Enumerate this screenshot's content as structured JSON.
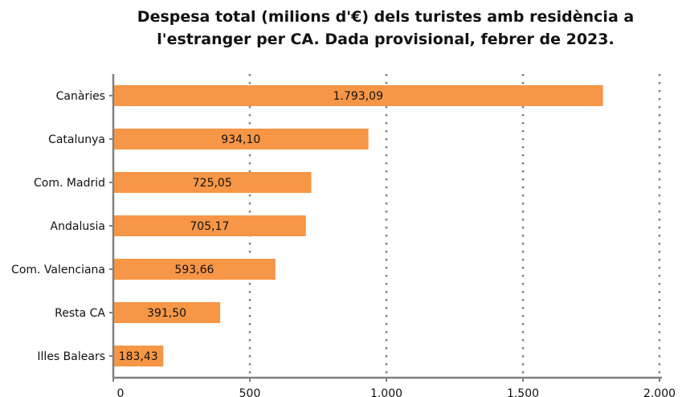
{
  "title_lines": [
    "Despesa total (milions d'€) dels turistes amb residència a",
    "l'estranger per CA. Dada provisional, febrer de 2023."
  ],
  "colors": {
    "bar": "#f79646",
    "axis": "#808080",
    "grid": "#808080",
    "text": "#111111"
  },
  "chart_data": {
    "type": "bar",
    "orientation": "horizontal",
    "title": "Despesa total (milions d'€) dels turistes amb residència a l'estranger per CA. Dada provisional, febrer de 2023.",
    "categories": [
      "Canàries",
      "Catalunya",
      "Com. Madrid",
      "Andalusia",
      "Com. Valenciana",
      "Resta CA",
      "Illes Balears"
    ],
    "values": [
      1793.09,
      934.1,
      725.05,
      705.17,
      593.66,
      391.5,
      183.43
    ],
    "value_labels": [
      "1.793,09",
      "934,10",
      "725,05",
      "705,17",
      "593,66",
      "391,50",
      "183,43"
    ],
    "xlim": [
      0,
      2000
    ],
    "xticks": [
      0,
      500,
      1000,
      1500,
      2000
    ],
    "xtick_labels": [
      "0",
      "500",
      "1.000",
      "1.500",
      "2.000"
    ],
    "grid": "vertical-dotted",
    "legend": "none"
  }
}
